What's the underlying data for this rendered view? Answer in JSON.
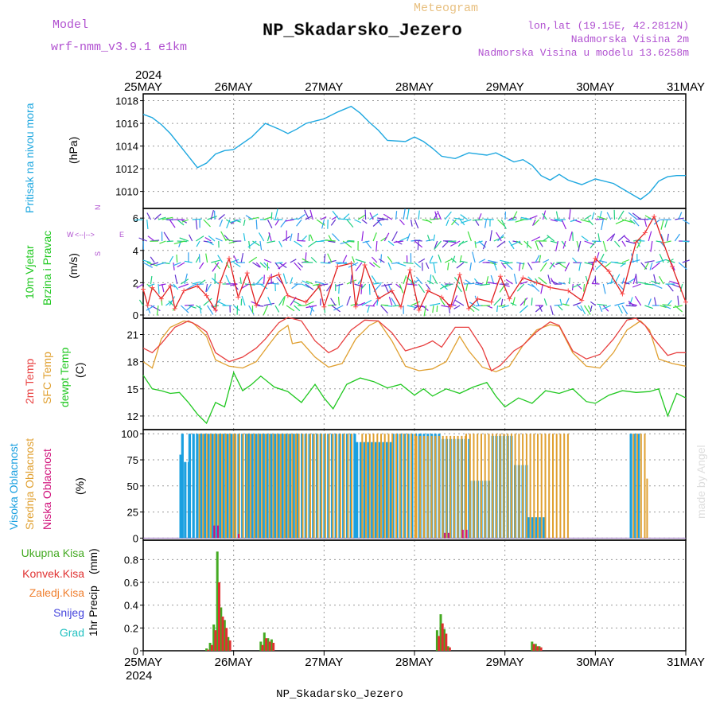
{
  "header": {
    "model_label": "Model",
    "model_name": "wrf-nmm_v3.9.1  e1km",
    "chart_kind": "Meteogram",
    "station": "NP_Skadarsko_Jezero",
    "lonlat": "lon,lat (19.15E, 42.2812N)",
    "altitude": "Nadmorska Visina 2m",
    "model_altitude": "Nadmorska Visina u modelu 13.6258m",
    "footer_station": "NP_Skadarsko_Jezero",
    "watermark": "made by Angel",
    "year": "2024"
  },
  "colors": {
    "pressure": "#1fa8e0",
    "wind_speed": "#e02020",
    "temp_2m": "#e84040",
    "temp_sfc": "#e0a030",
    "dewpt": "#20c820",
    "cloud_high": "#1aa0e0",
    "cloud_mid": "#e0a030",
    "cloud_low": "#d0107a",
    "precip_total": "#44aa22",
    "precip_conv": "#e03030",
    "precip_frozen": "#f08030",
    "snow": "#4444dd",
    "hail": "#20c0c0",
    "legend_purple": "#b050d0"
  },
  "chart_data": [
    {
      "type": "line",
      "title": "Pritisak na nivou mora",
      "ylabel": "(hPa)",
      "ylim": [
        1008.5,
        1018.6
      ],
      "yticks": [
        1010,
        1012,
        1014,
        1016,
        1018
      ],
      "x_labels": [
        "25MAY",
        "26MAY",
        "27MAY",
        "28MAY",
        "29MAY",
        "30MAY",
        "31MAY"
      ],
      "series": [
        {
          "name": "Pritisak na nivou mora",
          "x": [
            0,
            0.1,
            0.2,
            0.3,
            0.45,
            0.6,
            0.7,
            0.8,
            0.9,
            1.0,
            1.2,
            1.35,
            1.5,
            1.6,
            1.7,
            1.8,
            1.9,
            2.0,
            2.15,
            2.3,
            2.4,
            2.5,
            2.6,
            2.7,
            2.9,
            3.0,
            3.1,
            3.2,
            3.3,
            3.45,
            3.6,
            3.8,
            3.9,
            4.0,
            4.1,
            4.2,
            4.3,
            4.4,
            4.5,
            4.6,
            4.7,
            4.85,
            5.0,
            5.2,
            5.35,
            5.5,
            5.6,
            5.7,
            5.75,
            5.8,
            5.9,
            6.0
          ],
          "values": [
            1016.8,
            1016.5,
            1015.9,
            1015.1,
            1013.6,
            1012.1,
            1012.5,
            1013.3,
            1013.6,
            1013.7,
            1014.8,
            1016.0,
            1015.5,
            1015.1,
            1015.5,
            1016.0,
            1016.2,
            1016.4,
            1017.0,
            1017.5,
            1016.9,
            1016.1,
            1015.4,
            1014.5,
            1014.4,
            1014.8,
            1014.4,
            1013.8,
            1013.1,
            1012.9,
            1013.4,
            1013.2,
            1013.4,
            1013.0,
            1012.6,
            1012.8,
            1012.3,
            1011.4,
            1011.0,
            1011.5,
            1011.0,
            1010.6,
            1011.1,
            1010.7,
            1010.0,
            1009.3,
            1009.9,
            1010.9,
            1011.1,
            1011.3,
            1011.4,
            1011.4
          ]
        }
      ]
    },
    {
      "type": "line",
      "title": "10m Vjetar",
      "subtitle": "Brzina i Pravac",
      "ylabel": "(m/s)",
      "ylim": [
        -0.2,
        6.6
      ],
      "yticks": [
        0,
        2,
        4,
        6
      ],
      "compass": {
        "n": "N",
        "s": "S",
        "e": "E",
        "w": "W"
      },
      "series": [
        {
          "name": "10m Vjetar",
          "x": [
            0,
            0.05,
            0.1,
            0.2,
            0.3,
            0.35,
            0.45,
            0.6,
            0.7,
            0.8,
            0.85,
            0.95,
            1.05,
            1.15,
            1.25,
            1.4,
            1.5,
            1.6,
            1.8,
            1.95,
            2.0,
            2.15,
            2.3,
            2.35,
            2.45,
            2.6,
            2.75,
            2.85,
            2.95,
            3.05,
            3.15,
            3.3,
            3.4,
            3.5,
            3.6,
            3.7,
            3.85,
            3.95,
            4.05,
            4.2,
            4.35,
            4.5,
            4.7,
            4.85,
            5.0,
            5.15,
            5.3,
            5.45,
            5.55,
            5.65,
            5.75,
            5.85,
            6.0
          ],
          "values": [
            1.6,
            0.6,
            1.7,
            1.0,
            1.8,
            0.4,
            1.5,
            1.8,
            1.2,
            0.3,
            2.0,
            3.5,
            1.1,
            2.6,
            0.6,
            2.3,
            2.5,
            1.2,
            0.8,
            1.8,
            0.5,
            3.0,
            3.2,
            0.5,
            3.1,
            1.0,
            1.5,
            0.5,
            2.8,
            0.3,
            1.5,
            1.1,
            0.5,
            2.5,
            0.4,
            1.0,
            0.8,
            2.4,
            1.0,
            2.3,
            2.0,
            1.7,
            1.5,
            0.9,
            3.5,
            2.7,
            1.3,
            4.5,
            5.1,
            6.1,
            4.5,
            3.0,
            0.8
          ]
        }
      ]
    },
    {
      "type": "line",
      "title": "2m Temp",
      "ylabel": "(C)",
      "ylim": [
        10.5,
        22.8
      ],
      "yticks": [
        12,
        15,
        18,
        21
      ],
      "legend": [
        "2m Temp",
        "SFC Temp",
        "dewpt Temp"
      ],
      "series": [
        {
          "name": "2m Temp",
          "x": [
            0,
            0.1,
            0.2,
            0.35,
            0.5,
            0.6,
            0.7,
            0.8,
            0.95,
            1.1,
            1.25,
            1.35,
            1.5,
            1.6,
            1.75,
            1.9,
            2.05,
            2.15,
            2.3,
            2.45,
            2.6,
            2.75,
            2.9,
            3.1,
            3.2,
            3.3,
            3.45,
            3.6,
            3.75,
            3.85,
            3.95,
            4.1,
            4.2,
            4.35,
            4.5,
            4.6,
            4.75,
            4.9,
            5.05,
            5.2,
            5.35,
            5.45,
            5.55,
            5.65,
            5.8,
            5.9,
            6.0
          ],
          "values": [
            19.5,
            19.0,
            20.0,
            21.8,
            22.5,
            22.0,
            21.3,
            19.0,
            18.0,
            18.5,
            19.5,
            20.5,
            22.3,
            22.9,
            22.5,
            20.3,
            19.0,
            19.5,
            21.5,
            22.6,
            22.5,
            21.2,
            19.2,
            19.8,
            20.3,
            19.6,
            21.8,
            21.8,
            19.5,
            17.0,
            17.6,
            19.2,
            19.8,
            21.3,
            22.4,
            22.0,
            19.2,
            18.3,
            18.8,
            20.5,
            22.6,
            22.8,
            22.0,
            20.5,
            18.7,
            19.0,
            19.0
          ]
        },
        {
          "name": "SFC Temp",
          "x": [
            0,
            0.1,
            0.2,
            0.3,
            0.45,
            0.55,
            0.7,
            0.8,
            0.95,
            1.1,
            1.25,
            1.4,
            1.5,
            1.6,
            1.65,
            1.75,
            1.9,
            2.05,
            2.2,
            2.35,
            2.5,
            2.6,
            2.75,
            2.9,
            3.05,
            3.2,
            3.35,
            3.5,
            3.6,
            3.75,
            3.9,
            4.05,
            4.2,
            4.35,
            4.5,
            4.6,
            4.75,
            4.9,
            5.05,
            5.2,
            5.35,
            5.5,
            5.6,
            5.7,
            5.85,
            6.0
          ],
          "values": [
            18.0,
            17.3,
            20.5,
            21.8,
            22.5,
            22.3,
            20.8,
            18.2,
            17.5,
            17.3,
            18.0,
            20.0,
            21.3,
            22.0,
            20.0,
            20.2,
            18.5,
            17.4,
            17.8,
            20.5,
            22.0,
            22.5,
            20.3,
            17.5,
            17.0,
            17.2,
            18.0,
            20.8,
            19.2,
            17.4,
            16.9,
            17.5,
            19.8,
            21.5,
            22.1,
            21.9,
            19.0,
            17.5,
            17.3,
            19.0,
            21.5,
            22.5,
            21.5,
            18.3,
            17.8,
            17.5
          ]
        },
        {
          "name": "dewpt Temp",
          "x": [
            0,
            0.1,
            0.2,
            0.3,
            0.4,
            0.5,
            0.6,
            0.7,
            0.8,
            0.9,
            1.0,
            1.1,
            1.2,
            1.3,
            1.45,
            1.6,
            1.75,
            1.9,
            2.0,
            2.1,
            2.25,
            2.4,
            2.55,
            2.7,
            2.85,
            3.0,
            3.1,
            3.2,
            3.35,
            3.5,
            3.65,
            3.8,
            3.9,
            4.0,
            4.15,
            4.3,
            4.45,
            4.6,
            4.75,
            4.9,
            5.0,
            5.15,
            5.3,
            5.45,
            5.6,
            5.7,
            5.8,
            5.9,
            6.0
          ],
          "values": [
            16.5,
            15.0,
            14.8,
            14.5,
            14.6,
            13.5,
            12.2,
            11.2,
            13.5,
            13.0,
            16.8,
            14.8,
            15.5,
            16.4,
            15.2,
            14.7,
            13.5,
            15.5,
            14.0,
            12.8,
            15.5,
            16.2,
            15.8,
            15.1,
            15.5,
            14.3,
            15.0,
            14.2,
            15.0,
            14.5,
            15.2,
            15.7,
            14.2,
            13.0,
            14.0,
            13.4,
            14.8,
            14.5,
            15.0,
            13.6,
            13.4,
            14.3,
            14.8,
            14.6,
            14.7,
            15.0,
            12.0,
            14.5,
            14.0
          ]
        }
      ]
    },
    {
      "type": "bar",
      "title": "Visoka Oblacnost",
      "ylabel": "(%)",
      "ylim": [
        -2,
        104
      ],
      "yticks": [
        0,
        25,
        50,
        75,
        100
      ],
      "legend": [
        "Visoka Oblacnost",
        "Srednja Oblacnost",
        "Niska Oblacnost"
      ],
      "bar_step": 0.0417,
      "series": [
        {
          "name": "Visoka Oblacnost",
          "segments": [
            {
              "from": 0.4,
              "to": 0.42,
              "value": 80
            },
            {
              "from": 0.42,
              "to": 0.45,
              "value": 100
            },
            {
              "from": 0.45,
              "to": 0.5,
              "value": 73
            },
            {
              "from": 0.5,
              "to": 1.0,
              "value": 100
            },
            {
              "from": 1.0,
              "to": 1.15,
              "value": 100
            },
            {
              "from": 1.15,
              "to": 1.7,
              "value": 100
            },
            {
              "from": 1.7,
              "to": 2.35,
              "value": 100
            },
            {
              "from": 2.35,
              "to": 2.75,
              "value": 92
            },
            {
              "from": 2.75,
              "to": 3.05,
              "value": 100
            },
            {
              "from": 3.05,
              "to": 3.3,
              "value": 100
            },
            {
              "from": 3.3,
              "to": 3.6,
              "value": 95
            },
            {
              "from": 3.6,
              "to": 3.85,
              "value": 55
            },
            {
              "from": 3.85,
              "to": 4.1,
              "value": 98
            },
            {
              "from": 4.1,
              "to": 4.25,
              "value": 70
            },
            {
              "from": 4.25,
              "to": 4.45,
              "value": 20
            },
            {
              "from": 5.38,
              "to": 5.5,
              "value": 100
            }
          ]
        },
        {
          "name": "Srednja Oblacnost",
          "segments": [
            {
              "from": 0.6,
              "to": 1.0,
              "value": 100
            },
            {
              "from": 1.0,
              "to": 1.7,
              "value": 100
            },
            {
              "from": 1.7,
              "to": 2.3,
              "value": 100
            },
            {
              "from": 2.4,
              "to": 3.0,
              "value": 100
            },
            {
              "from": 3.0,
              "to": 3.55,
              "value": 98
            },
            {
              "from": 3.55,
              "to": 4.3,
              "value": 100
            },
            {
              "from": 4.3,
              "to": 4.7,
              "value": 100
            },
            {
              "from": 5.4,
              "to": 5.55,
              "value": 100
            },
            {
              "from": 5.55,
              "to": 5.58,
              "value": 57
            }
          ]
        },
        {
          "name": "Niska Oblacnost",
          "segments": [
            {
              "from": 0.75,
              "to": 0.8,
              "value": 12
            },
            {
              "from": 1.02,
              "to": 1.06,
              "value": 4
            },
            {
              "from": 3.3,
              "to": 3.35,
              "value": 5
            },
            {
              "from": 3.5,
              "to": 3.55,
              "value": 8
            }
          ]
        }
      ]
    },
    {
      "type": "bar",
      "title": "1hr Precip",
      "ylabel": "(mm)",
      "ylim": [
        0,
        0.97
      ],
      "yticks": [
        0,
        0.2,
        0.4,
        0.6,
        0.8
      ],
      "legend": [
        "Ukupna Kisa",
        "Konvek.Kisa",
        "Zaledj.Kisa",
        "Snijeg",
        "Grad"
      ],
      "x_labels": [
        "25MAY",
        "26MAY",
        "27MAY",
        "28MAY",
        "29MAY",
        "30MAY",
        "31MAY"
      ],
      "series": [
        {
          "name": "Ukupna Kisa",
          "x": [
            0.7,
            0.74,
            0.78,
            0.82,
            0.86,
            0.9,
            0.94,
            1.3,
            1.34,
            1.38,
            1.42,
            3.25,
            3.29,
            3.33,
            3.37,
            4.3,
            4.34,
            4.38
          ],
          "values": [
            0.02,
            0.07,
            0.23,
            0.87,
            0.38,
            0.27,
            0.12,
            0.08,
            0.16,
            0.11,
            0.1,
            0.18,
            0.32,
            0.19,
            0.04,
            0.08,
            0.06,
            0.04
          ]
        },
        {
          "name": "Konvek.Kisa",
          "x": [
            0.72,
            0.76,
            0.8,
            0.84,
            0.88,
            0.92,
            0.96,
            1.32,
            1.36,
            1.4,
            1.44,
            3.27,
            3.31,
            3.35,
            3.39,
            4.32,
            4.36,
            4.4
          ],
          "values": [
            0.01,
            0.05,
            0.18,
            0.6,
            0.3,
            0.2,
            0.09,
            0.05,
            0.11,
            0.08,
            0.07,
            0.13,
            0.24,
            0.15,
            0.03,
            0.06,
            0.04,
            0.03
          ]
        }
      ]
    }
  ]
}
